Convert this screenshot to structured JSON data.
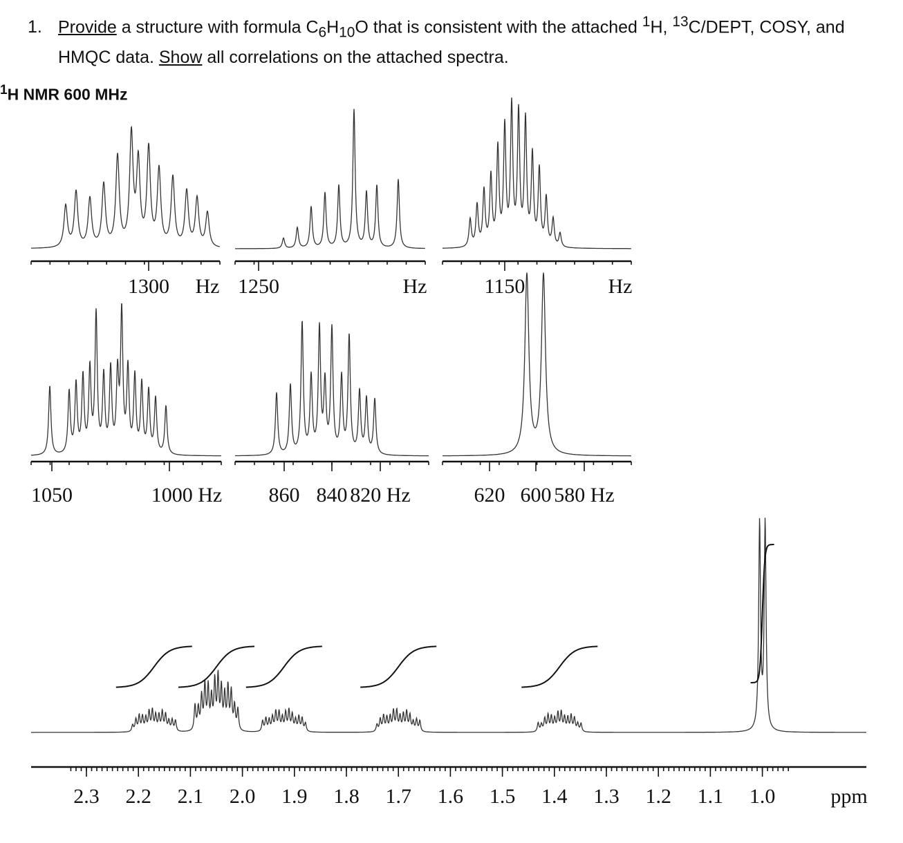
{
  "question": {
    "number": "1.",
    "verb1": "Provide",
    "text1a": " a structure with formula C",
    "sub_c": "6",
    "text1b": "H",
    "sub_h": "10",
    "text1c": "O that is consistent with the attached ",
    "sup_h": "1",
    "text1d": "H, ",
    "sup_c": "13",
    "text1e": "C/DEPT, COSY, and",
    "text2a": "HMQC data. ",
    "verb2": "Show",
    "text2b": " all correlations on the attached spectra."
  },
  "spectrum_title": {
    "sup": "1",
    "text": "H NMR 600 MHz"
  },
  "chart_data": [
    {
      "type": "line",
      "title": "1H NMR 600 MHz",
      "xlabel": "ppm",
      "x_reversed": true,
      "xlim": [
        2.33,
        0.95
      ],
      "tick_labels": [
        "2.3",
        "2.2",
        "2.1",
        "2.0",
        "1.9",
        "1.8",
        "1.7",
        "1.6",
        "1.5",
        "1.4",
        "1.3",
        "1.2",
        "1.1",
        "1.0"
      ],
      "ticks": [
        2.3,
        2.2,
        2.1,
        2.0,
        1.9,
        1.8,
        1.7,
        1.6,
        1.5,
        1.4,
        1.3,
        1.2,
        1.1,
        1.0
      ],
      "signals": [
        {
          "center_ppm": 2.17,
          "shape": "multiplet",
          "relative_height": 0.22,
          "integral": 1
        },
        {
          "center_ppm": 2.05,
          "shape": "multiplet",
          "relative_height": 0.55,
          "integral": 1
        },
        {
          "center_ppm": 1.92,
          "shape": "multiplet",
          "relative_height": 0.22,
          "integral": 1
        },
        {
          "center_ppm": 1.7,
          "shape": "multiplet",
          "relative_height": 0.22,
          "integral": 1
        },
        {
          "center_ppm": 1.39,
          "shape": "multiplet",
          "relative_height": 0.2,
          "integral": 1
        },
        {
          "center_ppm": 1.0,
          "shape": "doublet",
          "relative_height": 1.0,
          "integral": 3
        }
      ],
      "grid": false
    },
    {
      "type": "line",
      "panel": "expansion",
      "unit": "Hz",
      "tick_labels": [
        "1300",
        "Hz"
      ],
      "tick_values": [
        1300
      ]
    },
    {
      "type": "line",
      "panel": "expansion",
      "unit": "Hz",
      "tick_labels": [
        "1250",
        "Hz"
      ],
      "tick_values": [
        1250
      ]
    },
    {
      "type": "line",
      "panel": "expansion",
      "unit": "Hz",
      "tick_labels": [
        "1150",
        "Hz"
      ],
      "tick_values": [
        1150
      ]
    },
    {
      "type": "line",
      "panel": "expansion",
      "unit": "Hz",
      "tick_labels": [
        "1050",
        "1000 Hz"
      ],
      "tick_values": [
        1050,
        1000
      ]
    },
    {
      "type": "line",
      "panel": "expansion",
      "unit": "Hz",
      "tick_labels": [
        "860",
        "840",
        "820 Hz"
      ],
      "tick_values": [
        860,
        840,
        820
      ]
    },
    {
      "type": "line",
      "panel": "expansion",
      "unit": "Hz",
      "tick_labels": [
        "620",
        "600",
        "580 Hz"
      ],
      "tick_values": [
        620,
        600,
        580
      ]
    }
  ]
}
